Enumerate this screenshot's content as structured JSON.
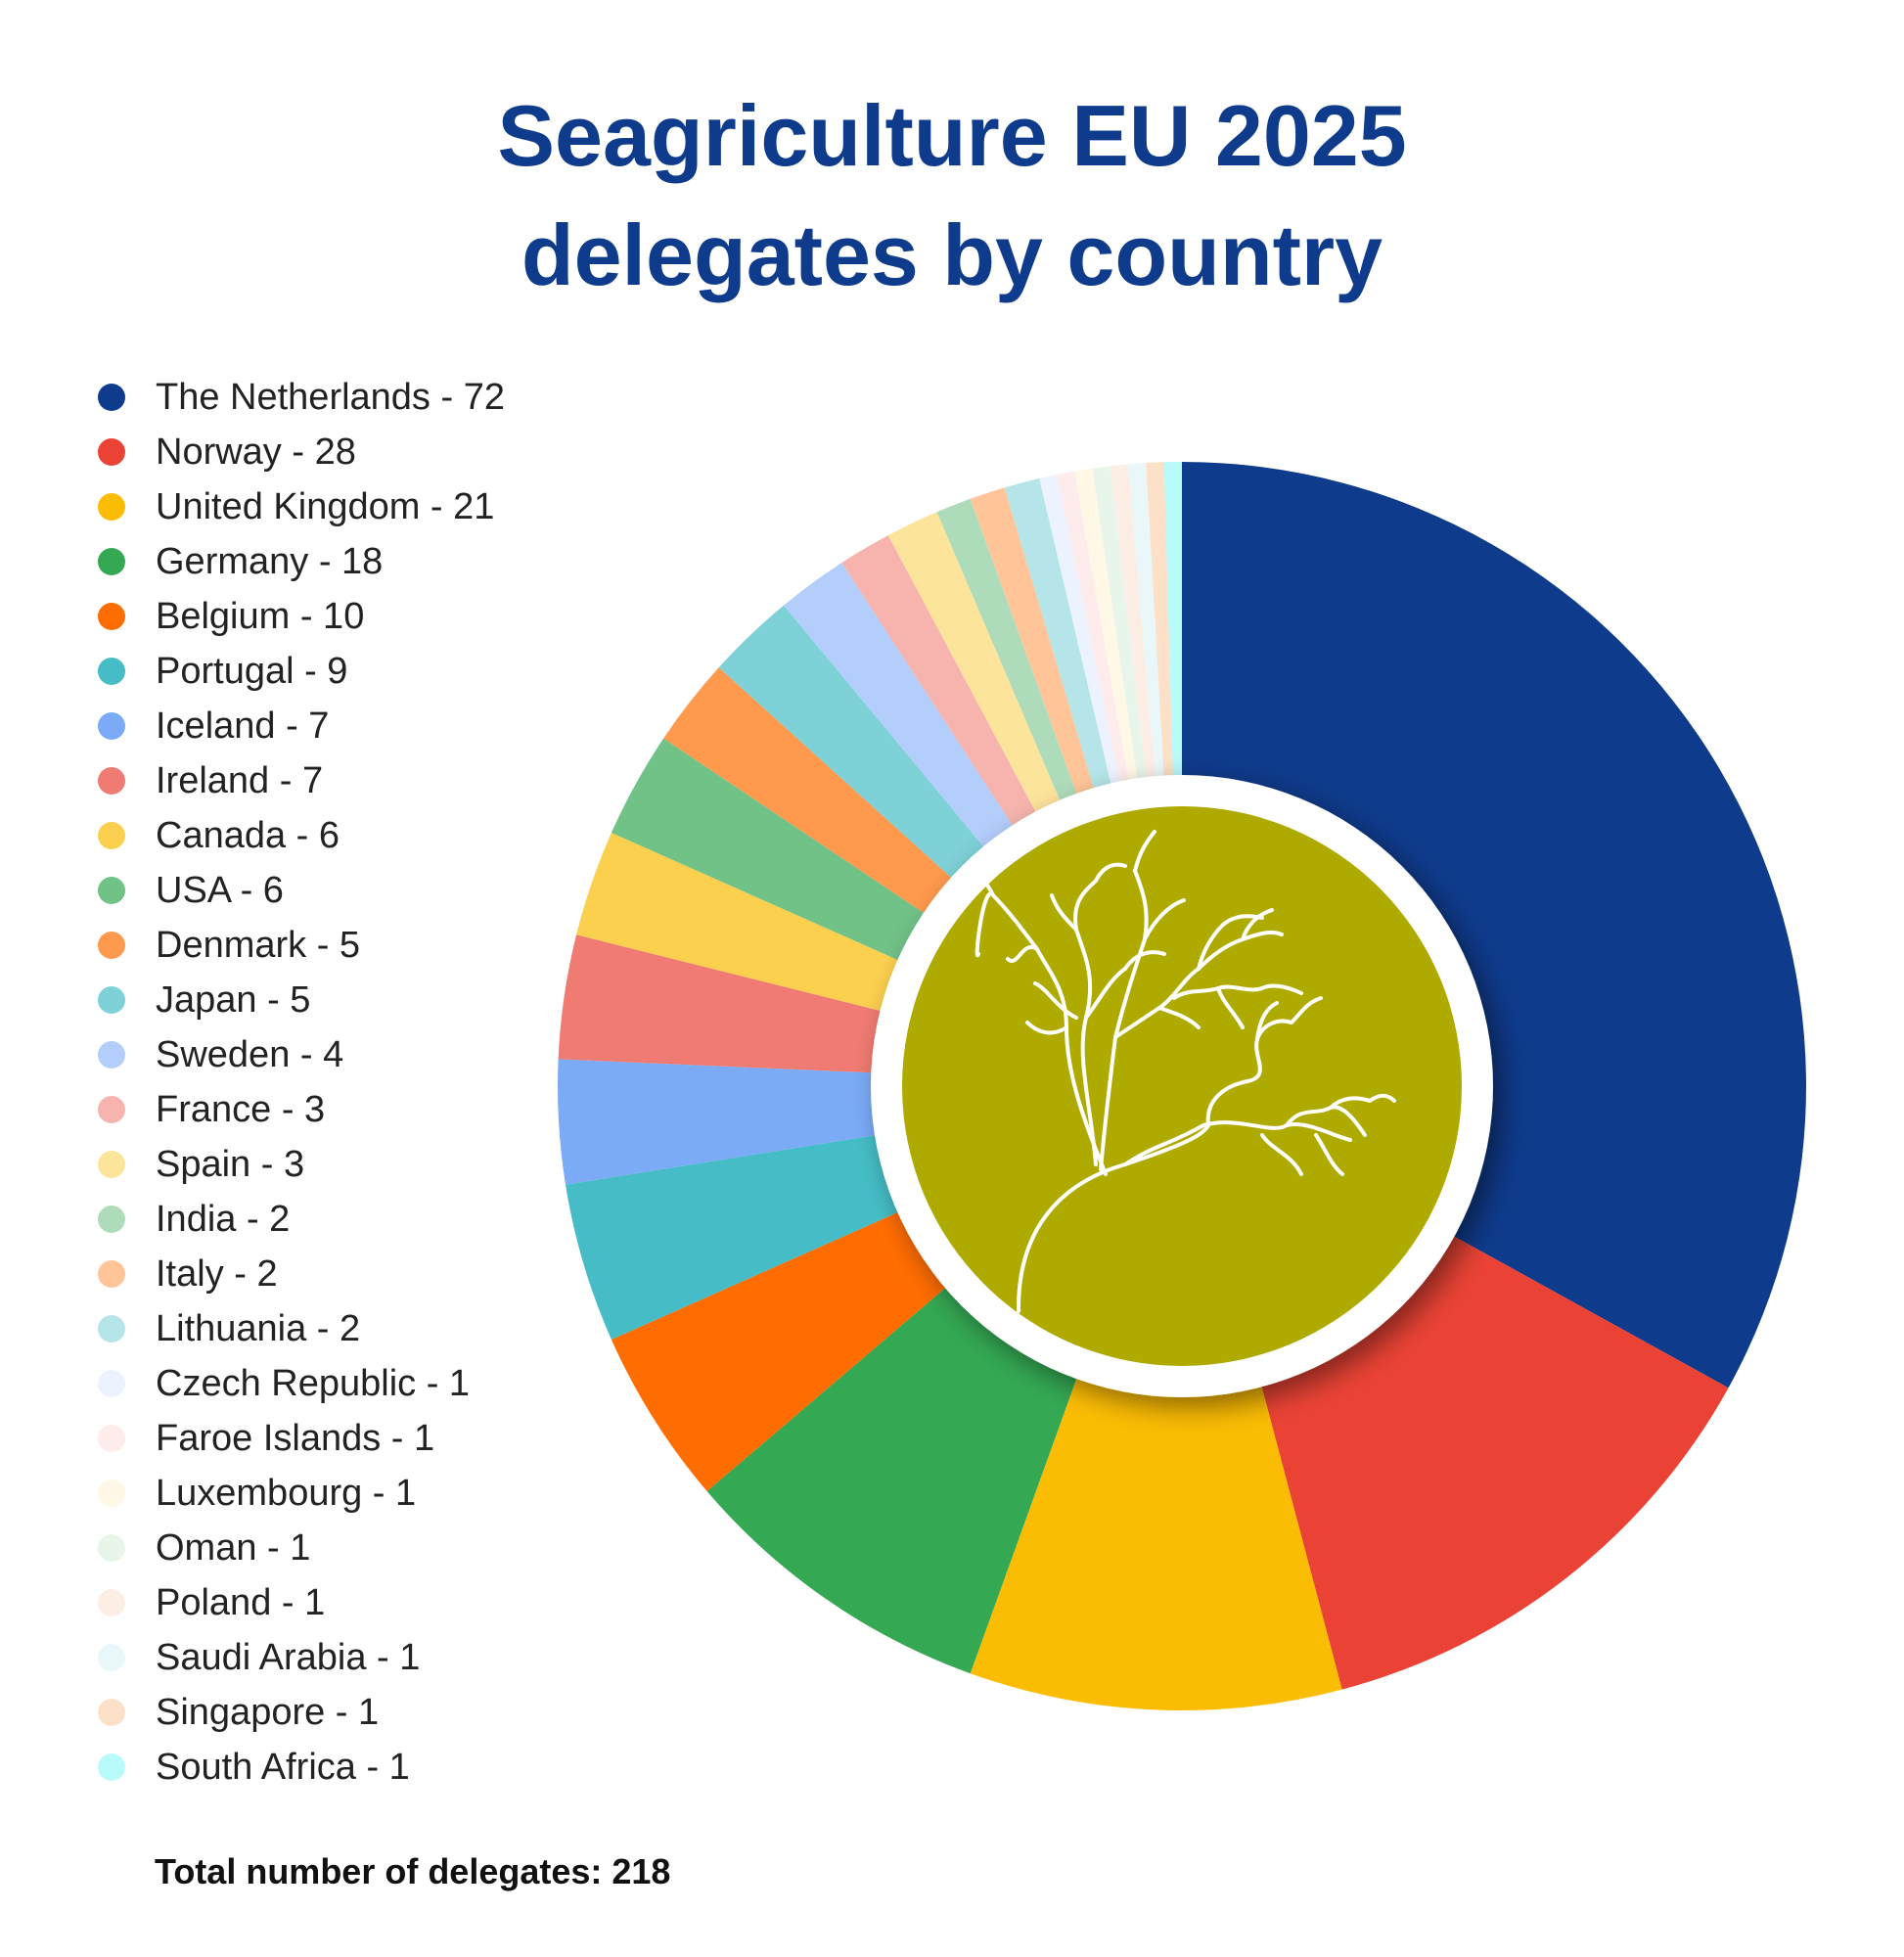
{
  "chart_data": {
    "type": "pie",
    "title_lines": [
      "Seagriculture EU 2025",
      "delegates by country"
    ],
    "total_label": "Total number of delegates: 218",
    "legend_position": "left",
    "slices": [
      {
        "name": "The Netherlands",
        "label": "The Netherlands - 72",
        "value": 72,
        "color": "#0f3b8c"
      },
      {
        "name": "Norway",
        "label": "Norway - 28",
        "value": 28,
        "color": "#ea4335"
      },
      {
        "name": "United Kingdom",
        "label": "United Kingdom - 21",
        "value": 21,
        "color": "#fbbc04"
      },
      {
        "name": "Germany",
        "label": "Germany - 18",
        "value": 18,
        "color": "#34a853"
      },
      {
        "name": "Belgium",
        "label": "Belgium - 10",
        "value": 10,
        "color": "#ff6d01"
      },
      {
        "name": "Portugal",
        "label": "Portugal - 9",
        "value": 9,
        "color": "#46bdc6"
      },
      {
        "name": "Iceland",
        "label": "Iceland - 7",
        "value": 7,
        "color": "#7baaf7"
      },
      {
        "name": "Ireland",
        "label": "Ireland - 7",
        "value": 7,
        "color": "#f07b72"
      },
      {
        "name": "Canada",
        "label": "Canada - 6",
        "value": 6,
        "color": "#fcd04f"
      },
      {
        "name": "USA",
        "label": "USA - 6",
        "value": 6,
        "color": "#71c287"
      },
      {
        "name": "Denmark",
        "label": "Denmark - 5",
        "value": 5,
        "color": "#ff994d"
      },
      {
        "name": "Japan",
        "label": "Japan - 5",
        "value": 5,
        "color": "#7ed1d7"
      },
      {
        "name": "Sweden",
        "label": "Sweden - 4",
        "value": 4,
        "color": "#b3cefb"
      },
      {
        "name": "France",
        "label": "France - 3",
        "value": 3,
        "color": "#f7b4ae"
      },
      {
        "name": "Spain",
        "label": "Spain - 3",
        "value": 3,
        "color": "#fde49b"
      },
      {
        "name": "India",
        "label": "India - 2",
        "value": 2,
        "color": "#aedcba"
      },
      {
        "name": "Italy",
        "label": "Italy - 2",
        "value": 2,
        "color": "#ffc599"
      },
      {
        "name": "Lithuania",
        "label": "Lithuania - 2",
        "value": 2,
        "color": "#b5e5e8"
      },
      {
        "name": "Czech Republic",
        "label": "Czech Republic - 1",
        "value": 1,
        "color": "#ecf2fe"
      },
      {
        "name": "Faroe Islands",
        "label": "Faroe Islands - 1",
        "value": 1,
        "color": "#fdeceb"
      },
      {
        "name": "Luxembourg",
        "label": "Luxembourg - 1",
        "value": 1,
        "color": "#fff8e6"
      },
      {
        "name": "Oman",
        "label": "Oman - 1",
        "value": 1,
        "color": "#e8f5eb"
      },
      {
        "name": "Poland",
        "label": "Poland - 1",
        "value": 1,
        "color": "#fdeee5"
      },
      {
        "name": "Saudi Arabia",
        "label": "Saudi Arabia - 1",
        "value": 1,
        "color": "#eaf7f8"
      },
      {
        "name": "Singapore",
        "label": "Singapore - 1",
        "value": 1,
        "color": "#fde0c8"
      },
      {
        "name": "South Africa",
        "label": "South Africa - 1",
        "value": 1,
        "color": "#b9fafa"
      }
    ],
    "center_logo": {
      "icon": "seaweed-icon",
      "background_color": "#afaa00",
      "line_color": "#ffffff"
    }
  }
}
